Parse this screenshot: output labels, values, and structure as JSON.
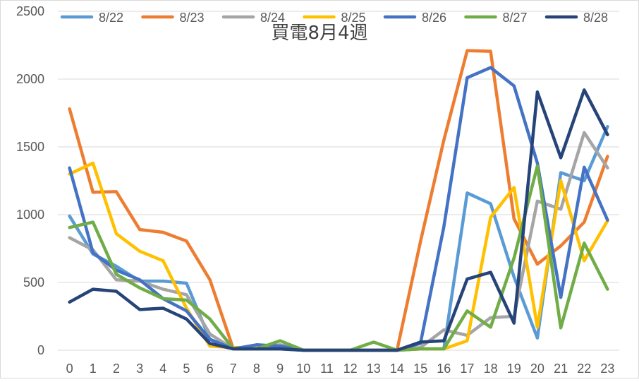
{
  "chart_data": {
    "type": "line",
    "title": "買電8月4週",
    "x": [
      "0",
      "1",
      "2",
      "3",
      "4",
      "5",
      "6",
      "7",
      "8",
      "9",
      "10",
      "11",
      "12",
      "13",
      "14",
      "15",
      "16",
      "17",
      "18",
      "19",
      "20",
      "21",
      "22",
      "23"
    ],
    "ylim": [
      0,
      2500
    ],
    "yticks": [
      "0",
      "500",
      "1000",
      "1500",
      "2000",
      "2500"
    ],
    "grid": true,
    "legend_position": "top",
    "series": [
      {
        "name": "8/22",
        "color": "#5B9BD5",
        "values": [
          990,
          710,
          620,
          510,
          510,
          495,
          80,
          10,
          10,
          10,
          0,
          0,
          0,
          0,
          0,
          10,
          10,
          1160,
          1080,
          540,
          90,
          1310,
          1250,
          1650
        ]
      },
      {
        "name": "8/23",
        "color": "#ED7D31",
        "values": [
          1780,
          1165,
          1170,
          890,
          870,
          805,
          520,
          10,
          15,
          20,
          0,
          0,
          0,
          0,
          0,
          800,
          1550,
          2210,
          2205,
          970,
          635,
          770,
          945,
          1430
        ]
      },
      {
        "name": "8/24",
        "color": "#A5A5A5",
        "values": [
          830,
          740,
          520,
          510,
          450,
          410,
          120,
          10,
          20,
          40,
          0,
          0,
          0,
          0,
          0,
          20,
          150,
          110,
          240,
          250,
          1100,
          1040,
          1605,
          1345
        ]
      },
      {
        "name": "8/25",
        "color": "#FFC000",
        "values": [
          1300,
          1380,
          860,
          730,
          660,
          310,
          30,
          20,
          20,
          20,
          0,
          0,
          0,
          0,
          0,
          10,
          10,
          70,
          980,
          1200,
          170,
          1250,
          660,
          955
        ]
      },
      {
        "name": "8/26",
        "color": "#4472C4",
        "values": [
          1345,
          720,
          590,
          520,
          380,
          290,
          80,
          10,
          40,
          30,
          0,
          0,
          0,
          0,
          0,
          50,
          910,
          2010,
          2085,
          1950,
          1380,
          390,
          1350,
          960
        ]
      },
      {
        "name": "8/27",
        "color": "#70AD47",
        "values": [
          905,
          945,
          560,
          460,
          380,
          370,
          230,
          10,
          10,
          70,
          0,
          0,
          0,
          60,
          0,
          10,
          10,
          290,
          170,
          680,
          1360,
          165,
          790,
          450
        ]
      },
      {
        "name": "8/28",
        "color": "#264478",
        "values": [
          355,
          450,
          435,
          300,
          310,
          230,
          50,
          10,
          10,
          10,
          0,
          0,
          0,
          0,
          0,
          60,
          70,
          525,
          575,
          200,
          1905,
          1420,
          1920,
          1590
        ]
      }
    ]
  }
}
